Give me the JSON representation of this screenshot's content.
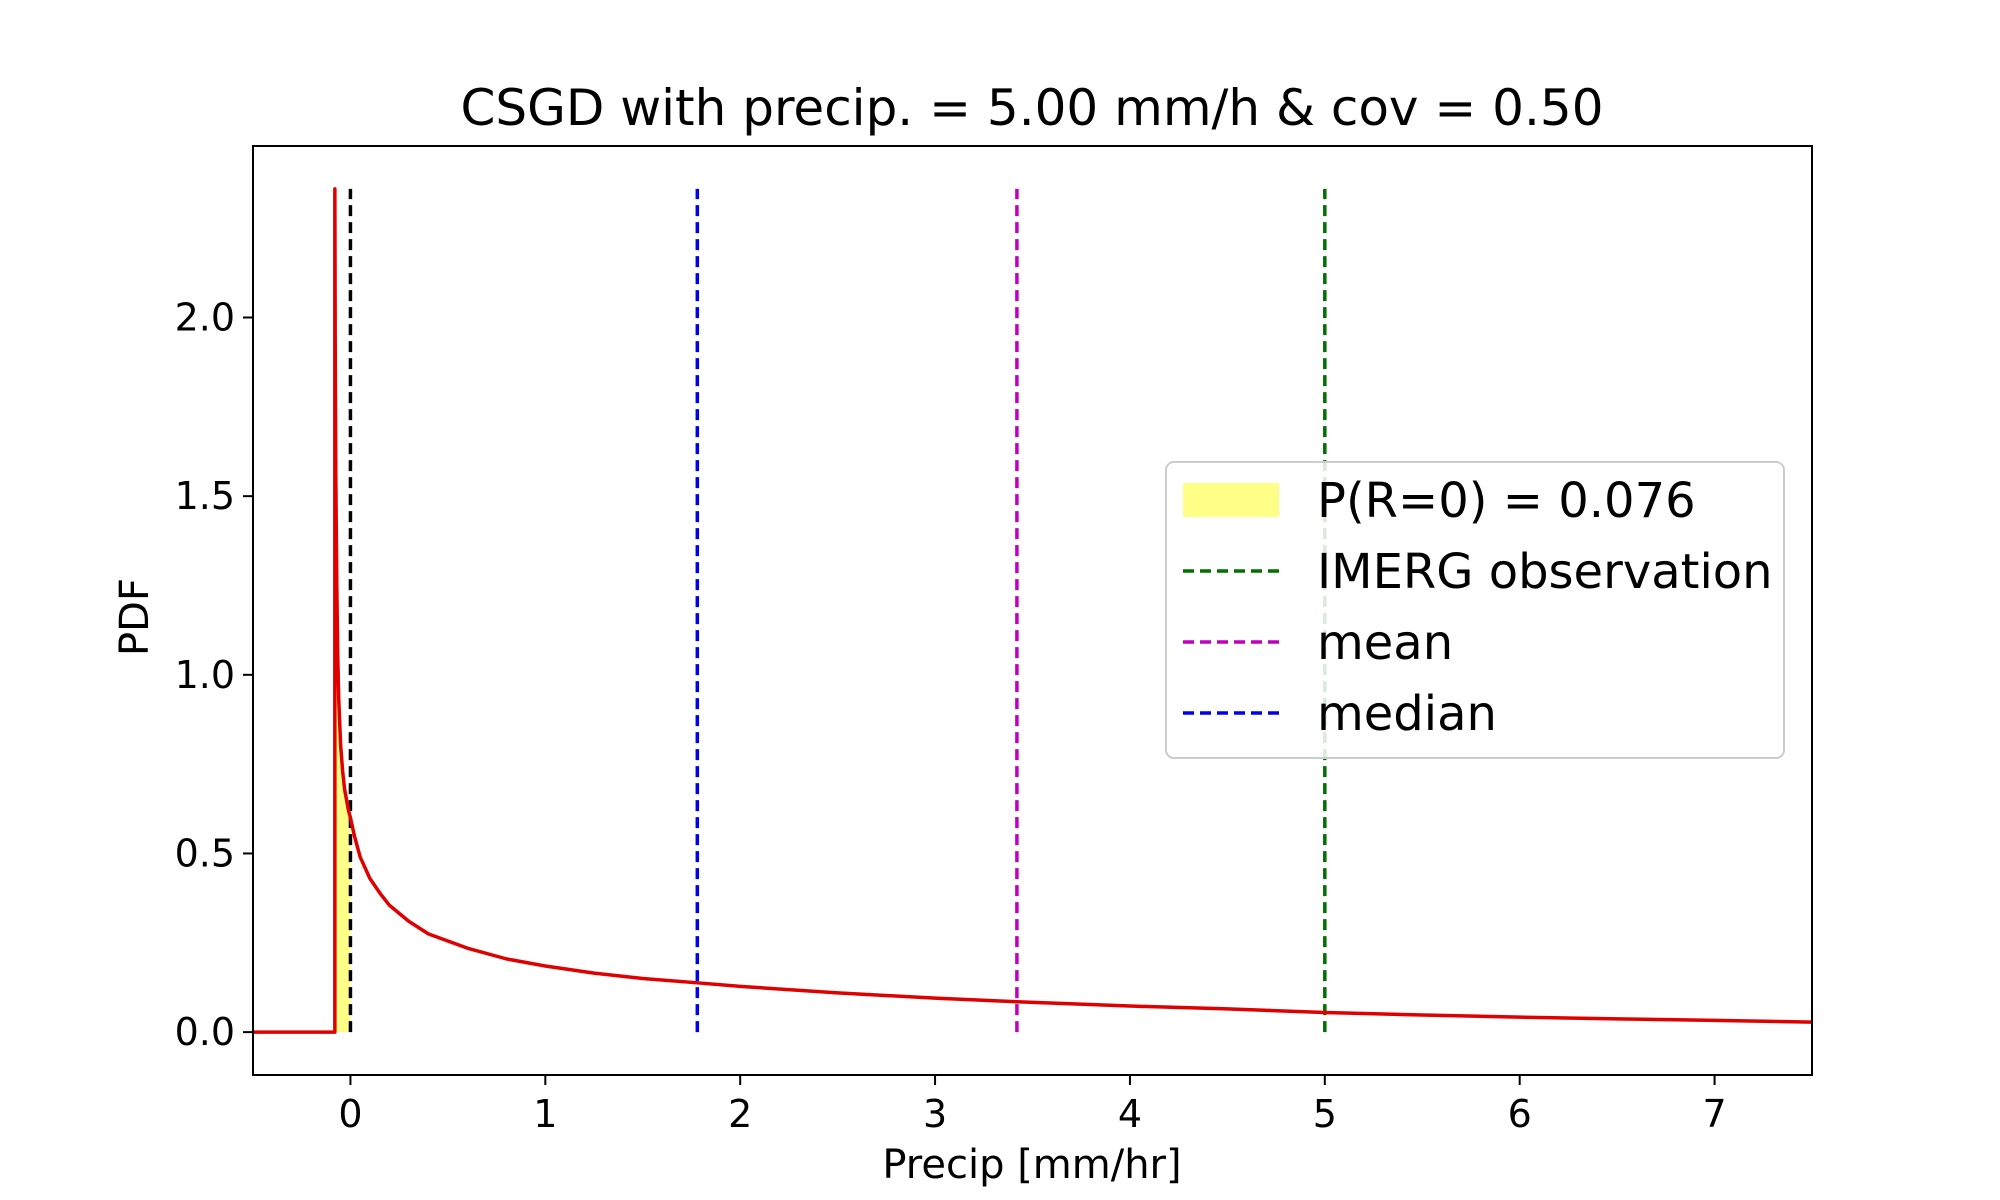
{
  "chart_data": {
    "type": "line",
    "title": "CSGD with precip. = 5.00 mm/h & cov = 0.50",
    "xlabel": "Precip [mm/hr]",
    "ylabel": "PDF",
    "xlim": [
      -0.5,
      7.5
    ],
    "ylim": [
      -0.12,
      2.48
    ],
    "xticks": [
      0,
      1,
      2,
      3,
      4,
      5,
      6,
      7
    ],
    "yticks": [
      0.0,
      0.5,
      1.0,
      1.5,
      2.0
    ],
    "xtick_labels": [
      "0",
      "1",
      "2",
      "3",
      "4",
      "5",
      "6",
      "7"
    ],
    "ytick_labels": [
      "0.0",
      "0.5",
      "1.0",
      "1.5",
      "2.0"
    ],
    "grid": false,
    "legend_placement": "center-right",
    "pdf_curve": {
      "color": "#e00000",
      "x": [
        -0.5,
        -0.4,
        -0.3,
        -0.2,
        -0.1,
        -0.08,
        -0.08,
        -0.078,
        -0.075,
        -0.07,
        -0.065,
        -0.06,
        -0.05,
        -0.04,
        -0.03,
        -0.02,
        -0.01,
        0.0,
        0.02,
        0.05,
        0.1,
        0.15,
        0.2,
        0.3,
        0.4,
        0.5,
        0.6,
        0.8,
        1.0,
        1.25,
        1.5,
        1.78,
        2.0,
        2.5,
        3.0,
        3.42,
        4.0,
        4.5,
        5.0,
        5.5,
        6.0,
        6.5,
        7.0,
        7.5
      ],
      "y": [
        0.0,
        0.0,
        0.0,
        0.0,
        0.0,
        0.0,
        2.36,
        1.9,
        1.55,
        1.25,
        1.05,
        0.93,
        0.8,
        0.73,
        0.68,
        0.65,
        0.62,
        0.6,
        0.55,
        0.49,
        0.43,
        0.39,
        0.355,
        0.31,
        0.275,
        0.255,
        0.235,
        0.205,
        0.185,
        0.165,
        0.15,
        0.138,
        0.128,
        0.11,
        0.095,
        0.085,
        0.073,
        0.065,
        0.055,
        0.048,
        0.042,
        0.037,
        0.033,
        0.028
      ]
    },
    "shaded_region": {
      "label": "P(R=0) = 0.076",
      "color": "#ffff88",
      "x": [
        -0.08,
        -0.078,
        -0.075,
        -0.07,
        -0.065,
        -0.06,
        -0.05,
        -0.04,
        -0.03,
        -0.02,
        -0.01,
        0.0
      ],
      "y": [
        2.36,
        1.9,
        1.55,
        1.25,
        1.05,
        0.93,
        0.8,
        0.73,
        0.68,
        0.65,
        0.62,
        0.6
      ]
    },
    "vlines": [
      {
        "name": "zero",
        "x": 0.0,
        "ymax": 2.36,
        "color": "#000000"
      },
      {
        "name": "median",
        "label": "median",
        "x": 1.78,
        "ymax": 2.36,
        "color": "#0000ee"
      },
      {
        "name": "mean",
        "label": "mean",
        "x": 3.42,
        "ymax": 2.36,
        "color": "#c000c0"
      },
      {
        "name": "imerg-observation",
        "label": "IMERG observation",
        "x": 5.0,
        "ymax": 2.36,
        "color": "#007000"
      }
    ],
    "legend": [
      {
        "label": "P(R=0) = 0.076",
        "kind": "patch",
        "color": "#ffff88"
      },
      {
        "label": "IMERG observation",
        "kind": "dashed",
        "color": "#007000"
      },
      {
        "label": "mean",
        "kind": "dashed",
        "color": "#c000c0"
      },
      {
        "label": "median",
        "kind": "dashed",
        "color": "#0000ee"
      }
    ]
  }
}
